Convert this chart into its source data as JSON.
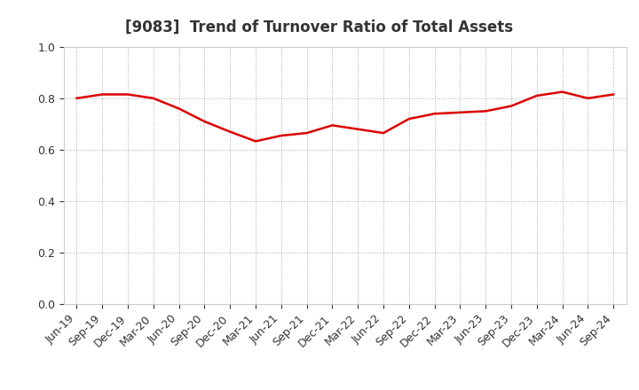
{
  "title": "[9083]  Trend of Turnover Ratio of Total Assets",
  "x_labels": [
    "Jun-19",
    "Sep-19",
    "Dec-19",
    "Mar-20",
    "Jun-20",
    "Sep-20",
    "Dec-20",
    "Mar-21",
    "Jun-21",
    "Sep-21",
    "Dec-21",
    "Mar-22",
    "Jun-22",
    "Sep-22",
    "Dec-22",
    "Mar-23",
    "Jun-23",
    "Sep-23",
    "Dec-23",
    "Mar-24",
    "Jun-24",
    "Sep-24"
  ],
  "y_values": [
    0.8,
    0.815,
    0.815,
    0.8,
    0.76,
    0.71,
    0.67,
    0.633,
    0.655,
    0.665,
    0.695,
    0.68,
    0.665,
    0.72,
    0.74,
    0.745,
    0.75,
    0.77,
    0.81,
    0.825,
    0.8,
    0.815
  ],
  "line_color": "#dd0000",
  "line_width": 1.8,
  "ylim": [
    0.0,
    1.0
  ],
  "yticks": [
    0.0,
    0.2,
    0.4,
    0.6,
    0.8,
    1.0
  ],
  "grid_color": "#aaaaaa",
  "background_color": "#ffffff",
  "title_fontsize": 12,
  "title_color": "#333333",
  "tick_fontsize": 9,
  "tick_color": "#333333"
}
